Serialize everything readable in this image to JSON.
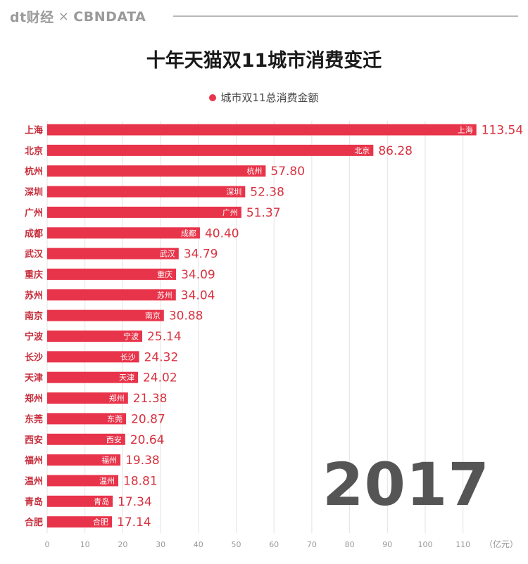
{
  "brand": {
    "name": "dt财经",
    "separator": "×",
    "partner": "CBNDATA"
  },
  "colors": {
    "bar": "#e8344a",
    "label": "#d8323f",
    "grid": "#e3e3e3",
    "city": "#c62d3b"
  },
  "chart_data": {
    "type": "bar",
    "orientation": "horizontal",
    "title": "十年天猫双11城市消费变迁",
    "legend": "城市双11总消费金额",
    "unit_label": "（亿元）",
    "year": "2017",
    "xlim": [
      0,
      115
    ],
    "ticks": [
      0,
      10,
      20,
      30,
      40,
      50,
      60,
      70,
      80,
      90,
      100,
      110
    ],
    "categories": [
      "上海",
      "北京",
      "杭州",
      "深圳",
      "广州",
      "成都",
      "武汉",
      "重庆",
      "苏州",
      "南京",
      "宁波",
      "长沙",
      "天津",
      "郑州",
      "东莞",
      "西安",
      "福州",
      "温州",
      "青岛",
      "合肥"
    ],
    "values": [
      "113.54",
      "86.28",
      "57.80",
      "52.38",
      "51.37",
      "40.40",
      "34.79",
      "34.09",
      "34.04",
      "30.88",
      "25.14",
      "24.32",
      "24.02",
      "21.38",
      "20.87",
      "20.64",
      "19.38",
      "18.81",
      "17.34",
      "17.14"
    ]
  }
}
